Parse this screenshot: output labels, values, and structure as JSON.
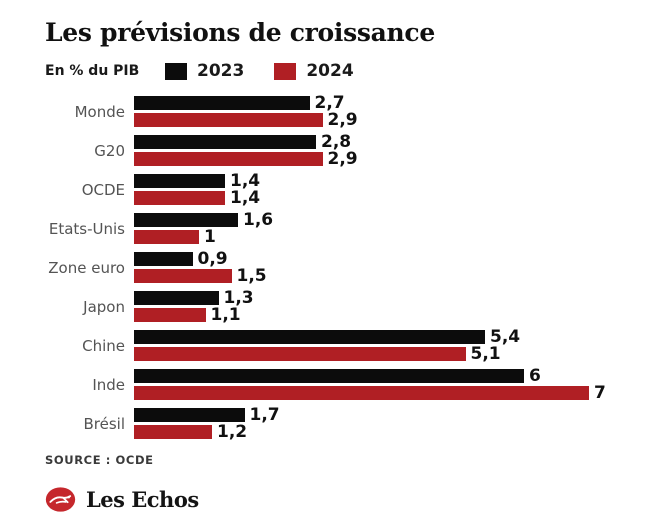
{
  "header": {
    "title": "Les prévisions de croissance"
  },
  "chart_data": {
    "type": "bar",
    "orientation": "horizontal",
    "title": "Les prévisions de croissance",
    "unit_label": "En % du PIB",
    "categories": [
      "Monde",
      "G20",
      "OCDE",
      "Etats-Unis",
      "Zone euro",
      "Japon",
      "Chine",
      "Inde",
      "Brésil"
    ],
    "series": [
      {
        "name": "2023",
        "color": "#0c0c0c",
        "values": [
          2.7,
          2.8,
          1.4,
          1.6,
          0.9,
          1.3,
          5.4,
          6,
          1.7
        ],
        "labels": [
          "2,7",
          "2,8",
          "1,4",
          "1,6",
          "0,9",
          "1,3",
          "5,4",
          "6",
          "1,7"
        ]
      },
      {
        "name": "2024",
        "color": "#b01f24",
        "values": [
          2.9,
          2.9,
          1.4,
          1,
          1.5,
          1.1,
          5.1,
          7,
          1.2
        ],
        "labels": [
          "2,9",
          "2,9",
          "1,4",
          "1",
          "1,5",
          "1,1",
          "5,1",
          "7",
          "1,2"
        ]
      }
    ],
    "xlim": [
      0,
      7.3
    ],
    "grid": false,
    "legend_position": "top",
    "value_labels_shown": true
  },
  "footer": {
    "source": "SOURCE : OCDE",
    "logo_text": "Les Echos",
    "logo_icon": "lesechos-bird-icon",
    "logo_color": "#c5272c"
  }
}
